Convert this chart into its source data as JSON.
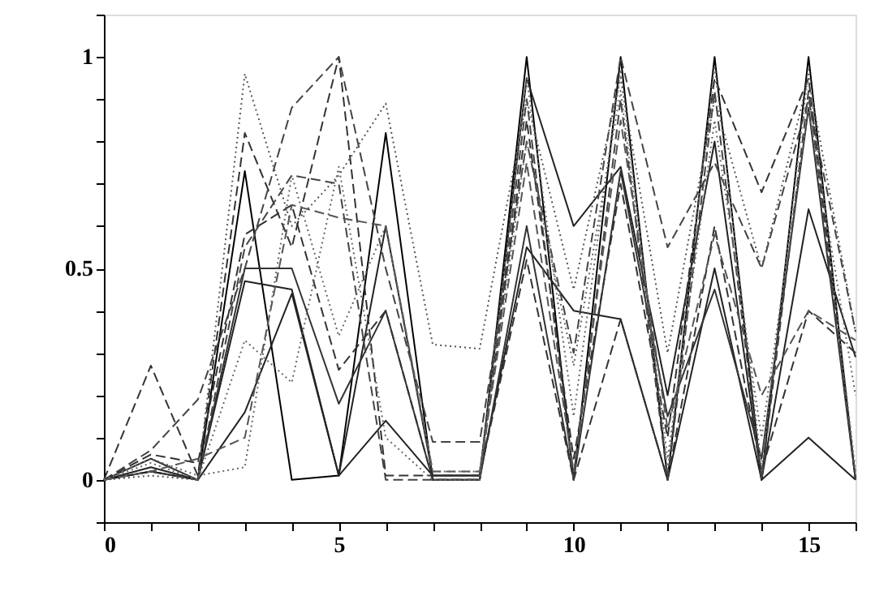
{
  "chart_data": {
    "type": "line",
    "x": [
      0,
      1,
      2,
      3,
      4,
      5,
      6,
      7,
      8,
      9,
      10,
      11,
      12,
      13,
      14,
      15,
      16
    ],
    "xlim": [
      0,
      16
    ],
    "ylim": [
      -0.1,
      1.1
    ],
    "xticks": [
      0,
      {
        "value": 1,
        "label": null
      },
      {
        "value": 2,
        "label": null
      },
      {
        "value": 3,
        "label": null
      },
      {
        "value": 4,
        "label": null
      },
      5,
      {
        "value": 6,
        "label": null
      },
      {
        "value": 7,
        "label": null
      },
      {
        "value": 8,
        "label": null
      },
      {
        "value": 9,
        "label": null
      },
      10,
      {
        "value": 11,
        "label": null
      },
      {
        "value": 12,
        "label": null
      },
      {
        "value": 13,
        "label": null
      },
      {
        "value": 14,
        "label": null
      },
      15,
      {
        "value": 16,
        "label": null
      }
    ],
    "yticks": [
      {
        "value": -0.1,
        "label": null
      },
      0,
      {
        "value": 0.1,
        "label": null
      },
      {
        "value": 0.2,
        "label": null
      },
      {
        "value": 0.3,
        "label": null
      },
      {
        "value": 0.4,
        "label": null
      },
      0.5,
      {
        "value": 0.6,
        "label": null
      },
      {
        "value": 0.7,
        "label": null
      },
      {
        "value": 0.8,
        "label": null
      },
      {
        "value": 0.9,
        "label": null
      },
      1,
      {
        "value": 1.1,
        "label": null
      }
    ],
    "grid": false,
    "marker": "none",
    "series": [
      {
        "color": "#000000",
        "line_style": "solid",
        "values": [
          0,
          0.02,
          0,
          0.73,
          0,
          0.01,
          0.82,
          0,
          0,
          1,
          0,
          1,
          0,
          1,
          0,
          1,
          0
        ]
      },
      {
        "color": "#222222",
        "line_style": "solid",
        "values": [
          0,
          0.02,
          0,
          0.47,
          0.45,
          0.01,
          0.6,
          0.01,
          0.01,
          0.95,
          0.6,
          0.74,
          0.2,
          0.8,
          0,
          0.64,
          0.29
        ]
      },
      {
        "color": "#555555",
        "line_style": "dotted",
        "values": [
          0,
          0.01,
          0,
          0.96,
          0.6,
          0.72,
          0.89,
          0.32,
          0.31,
          0.9,
          0.45,
          0.95,
          0.3,
          0.9,
          0.5,
          0.95,
          0.35
        ]
      },
      {
        "color": "#333333",
        "line_style": "dashed",
        "values": [
          0,
          0.27,
          0.01,
          0.82,
          0.55,
          1.0,
          0.01,
          0.01,
          0.01,
          0.52,
          0,
          0.38,
          0,
          0.6,
          0.02,
          0.4,
          0.3
        ]
      },
      {
        "color": "#444444",
        "line_style": "dashed",
        "values": [
          0,
          0.07,
          0.19,
          0.5,
          0.88,
          1.0,
          0.5,
          0.09,
          0.09,
          0.8,
          0.3,
          1.0,
          0.55,
          0.75,
          0.5,
          0.9,
          0.35
        ]
      },
      {
        "color": "#333333",
        "line_style": "dashed",
        "values": [
          0,
          0.06,
          0.04,
          0.58,
          0.65,
          0.26,
          0.4,
          0,
          0,
          0.85,
          0.05,
          0.7,
          0.1,
          0.95,
          0.68,
          0.95,
          0
        ]
      },
      {
        "color": "#666666",
        "line_style": "dotted",
        "values": [
          0,
          0.05,
          0.01,
          0.03,
          0.72,
          0.34,
          0.6,
          0.02,
          0.02,
          0.8,
          0.27,
          0.92,
          0.05,
          0.85,
          0.1,
          0.88,
          0.2
        ]
      },
      {
        "color": "#222222",
        "line_style": "solid",
        "values": [
          0,
          0.03,
          0,
          0.16,
          0.44,
          0.01,
          0.14,
          0.01,
          0.01,
          0.55,
          0.4,
          0.38,
          0,
          0.5,
          0,
          0.1,
          0
        ]
      },
      {
        "color": "#444444",
        "line_style": "dashed",
        "values": [
          0,
          0.02,
          0,
          0.55,
          0.72,
          0.7,
          0,
          0,
          0,
          0.9,
          0,
          0.9,
          0,
          0.92,
          0,
          0.92,
          0
        ]
      },
      {
        "color": "#666666",
        "line_style": "dotted",
        "values": [
          0,
          0.04,
          0,
          0.33,
          0.23,
          0.74,
          0.1,
          0,
          0,
          0.95,
          0.15,
          0.97,
          0.02,
          0.98,
          0.03,
          0.97,
          0.02
        ]
      },
      {
        "color": "#555555",
        "line_style": "dashed",
        "values": [
          0,
          0.02,
          0.05,
          0.1,
          0.65,
          0.62,
          0.6,
          0.02,
          0.02,
          0.75,
          0.02,
          0.85,
          0.12,
          0.58,
          0.2,
          0.4,
          0.33
        ]
      },
      {
        "color": "#333333",
        "line_style": "solid",
        "values": [
          0,
          0.05,
          0,
          0.5,
          0.5,
          0.18,
          0.4,
          0,
          0,
          0.6,
          0,
          0.73,
          0.15,
          0.45,
          0.05,
          0.88,
          0
        ]
      }
    ]
  }
}
